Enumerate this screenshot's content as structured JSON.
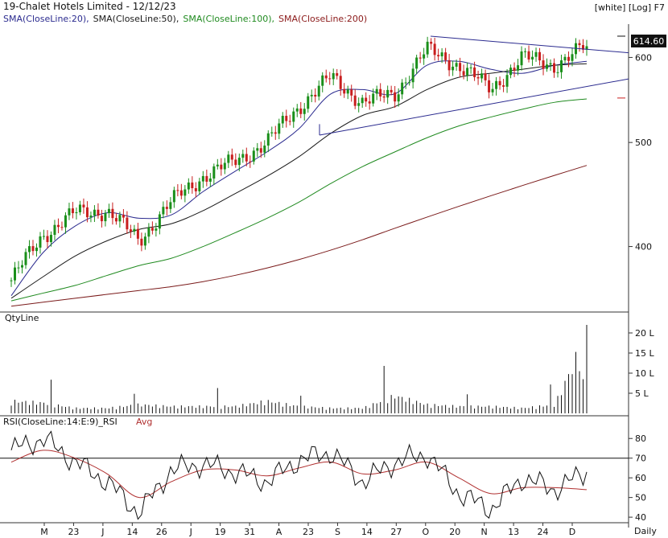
{
  "header": {
    "title": "19-Chalet Hotels Limited - 12/12/23",
    "view_mode": "[white] [Log] F7",
    "indicators": [
      {
        "label": "SMA(CloseLine:20),",
        "color": "#2b2b8f"
      },
      {
        "label": "SMA(CloseLine:50),",
        "color": "#1a1a1a"
      },
      {
        "label": "SMA(CloseLine:100),",
        "color": "#1f8a1f"
      },
      {
        "label": "SMA(CloseLine:200)",
        "color": "#8b1a1a"
      }
    ]
  },
  "price_panel": {
    "last_price_label": "614.60",
    "axis_ticks": [
      "600",
      "500",
      "400"
    ]
  },
  "volume_panel": {
    "title": "QtyLine",
    "axis_ticks": [
      "20 L",
      "15 L",
      "10 L",
      "5 L"
    ]
  },
  "rsi_panel": {
    "title": "RSI(CloseLine:14:E:9)_RSI",
    "avg_label": "Avg",
    "axis_ticks": [
      "80",
      "70",
      "60",
      "50",
      "40"
    ]
  },
  "x_axis": {
    "labels": [
      "M",
      "23",
      "J",
      "14",
      "26",
      "J",
      "19",
      "31",
      "A",
      "23",
      "S",
      "14",
      "27",
      "O",
      "20",
      "N",
      "13",
      "24",
      "D"
    ],
    "period_label": "Daily"
  },
  "colors": {
    "up_candle": "#1a8f1a",
    "down_candle": "#c81e1e",
    "sma20": "#2b2b8f",
    "sma50": "#1a1a1a",
    "sma100": "#1f8a1f",
    "sma200": "#7a1a1a",
    "trendline": "#2b2b8f",
    "rsi_line": "#111111",
    "rsi_avg": "#b03030"
  },
  "chart_data": [
    {
      "type": "candlestick",
      "title": "19-Chalet Hotels Limited - 12/12/23",
      "y_scale": "log",
      "ylim": [
        350,
        640
      ],
      "x": [
        "M",
        "23",
        "J",
        "14",
        "26",
        "J",
        "19",
        "31",
        "A",
        "23",
        "S",
        "14",
        "27",
        "O",
        "20",
        "N",
        "13",
        "24",
        "D"
      ],
      "close_approx": [
        372,
        410,
        430,
        432,
        405,
        440,
        465,
        480,
        500,
        540,
        575,
        545,
        555,
        610,
        590,
        560,
        600,
        590,
        614.6
      ],
      "last_close": 614.6,
      "series": [
        {
          "name": "SMA(CloseLine:20)",
          "values": [
            360,
            395,
            418,
            430,
            425,
            428,
            450,
            470,
            490,
            515,
            555,
            560,
            555,
            590,
            595,
            585,
            580,
            590,
            595
          ]
        },
        {
          "name": "SMA(CloseLine:50)",
          "values": [
            358,
            375,
            392,
            405,
            415,
            420,
            432,
            448,
            465,
            485,
            510,
            530,
            540,
            560,
            575,
            580,
            585,
            590,
            592
          ]
        },
        {
          "name": "SMA(CloseLine:100)",
          "values": [
            356,
            362,
            368,
            376,
            384,
            390,
            400,
            412,
            425,
            440,
            458,
            475,
            490,
            505,
            518,
            528,
            537,
            545,
            549
          ]
        },
        {
          "name": "SMA(CloseLine:200)",
          "values": [
            352,
            355,
            358,
            361,
            364,
            367,
            371,
            376,
            382,
            389,
            397,
            406,
            416,
            426,
            436,
            446,
            456,
            466,
            476
          ]
        }
      ]
    },
    {
      "type": "bar",
      "title": "QtyLine",
      "ylim": [
        0,
        22
      ],
      "y_unit": "L",
      "x": [
        "M",
        "23",
        "J",
        "14",
        "26",
        "J",
        "19",
        "31",
        "A",
        "23",
        "S",
        "14",
        "27",
        "O",
        "20",
        "N",
        "13",
        "24",
        "D"
      ],
      "values": [
        3.5,
        3,
        1.5,
        1.5,
        2.5,
        2,
        2,
        2,
        3.5,
        2,
        1.5,
        1.5,
        5,
        2.5,
        2,
        2,
        1.5,
        2.5,
        22
      ]
    },
    {
      "type": "line",
      "title": "RSI(CloseLine:14:E:9)_RSI",
      "ylim": [
        38,
        85
      ],
      "reference_lines": [
        70
      ],
      "x": [
        "M",
        "23",
        "J",
        "14",
        "26",
        "J",
        "19",
        "31",
        "A",
        "23",
        "S",
        "14",
        "27",
        "O",
        "20",
        "N",
        "13",
        "24",
        "D"
      ],
      "series": [
        {
          "name": "RSI",
          "values": [
            74,
            80,
            68,
            58,
            42,
            64,
            67,
            63,
            58,
            69,
            73,
            58,
            68,
            72,
            52,
            44,
            60,
            54,
            63
          ]
        },
        {
          "name": "Avg",
          "values": [
            68,
            74,
            70,
            62,
            50,
            58,
            64,
            64,
            61,
            65,
            68,
            62,
            64,
            68,
            60,
            52,
            55,
            55,
            54
          ]
        }
      ]
    }
  ]
}
